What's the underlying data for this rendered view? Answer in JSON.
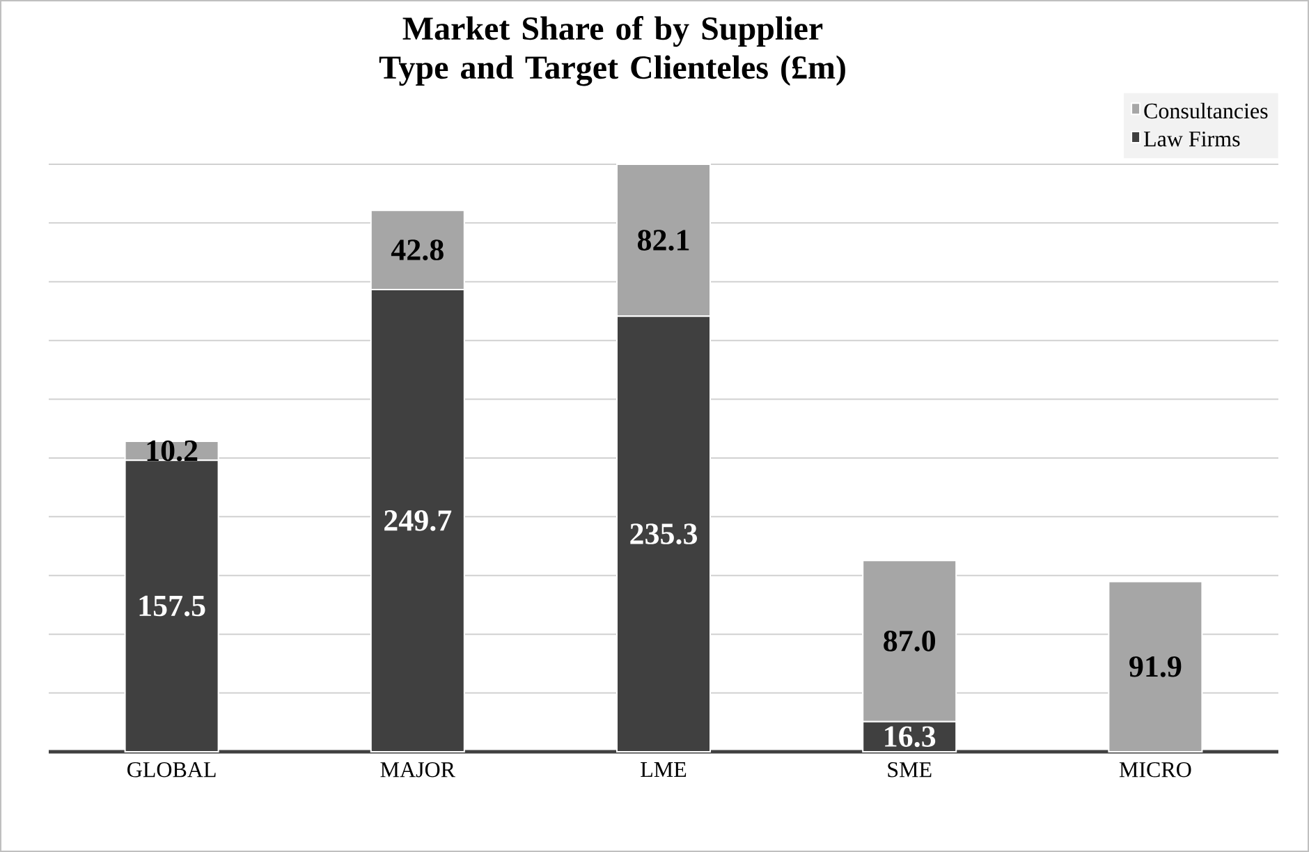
{
  "chart_data": {
    "type": "bar",
    "title": "Market Share of by Supplier Type and Target Clienteles (£m)",
    "categories": [
      "GLOBAL",
      "MAJOR",
      "LME",
      "SME",
      "MICRO"
    ],
    "stacked": true,
    "series": [
      {
        "name": "Law Firms",
        "color": "#404040",
        "values": [
          157.5,
          249.7,
          235.3,
          16.3,
          null
        ],
        "value_labels": [
          "157.5",
          "249.7",
          "235.3",
          "16.3",
          null
        ]
      },
      {
        "name": "Consultancies",
        "color": "#a6a6a6",
        "values": [
          10.2,
          42.8,
          82.1,
          87.0,
          91.9
        ],
        "value_labels": [
          "10.2",
          "42.8",
          "82.1",
          "87.0",
          "91.9"
        ]
      }
    ],
    "grid": "y",
    "legend": "top right"
  }
}
